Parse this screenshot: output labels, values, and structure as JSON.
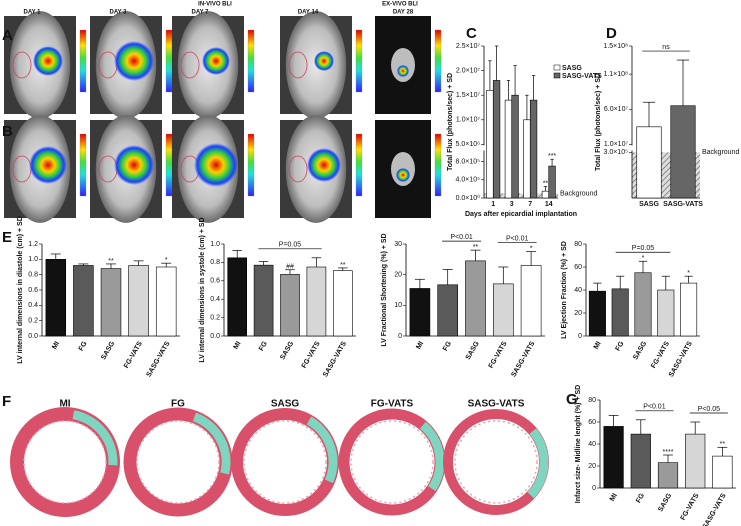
{
  "figure": {
    "panels": [
      "A",
      "B",
      "C",
      "D",
      "E",
      "F",
      "G"
    ],
    "in_vivo": "IN-VIVO BLI",
    "ex_vivo": "EX-VIVO BLI",
    "days": [
      "DAY 1",
      "DAY 3",
      "DAY 7",
      "DAY 14",
      "DAY 28"
    ],
    "histology": [
      "MI",
      "FG",
      "SASG",
      "FG-VATS",
      "SASG-VATS"
    ]
  },
  "chart_data": [
    {
      "type": "bar",
      "ylabel": "Total Flux (photons/sec) + SD",
      "xlabel": "Days after epicardial implantation",
      "categories": [
        "1",
        "3",
        "7",
        "14"
      ],
      "series": [
        {
          "name": "SASG",
          "color": "#ffffff",
          "values": [
            16000000,
            14000000,
            10000000,
            150000
          ],
          "errors": [
            6000000,
            4000000,
            5000000,
            100000
          ],
          "marks": [
            null,
            null,
            null,
            "**"
          ]
        },
        {
          "name": "SASG-VATS",
          "color": "#666666",
          "values": [
            18000000,
            15000000,
            14000000,
            700000
          ],
          "errors": [
            7000000,
            6000000,
            5000000,
            150000
          ],
          "marks": [
            null,
            null,
            null,
            "***"
          ]
        }
      ],
      "ylim": [
        0,
        25000000
      ],
      "axis_break": [
        1000000,
        5000000
      ],
      "yticks": [
        {
          "value": 0,
          "label": "0.0×10⁰"
        },
        {
          "value": 400000,
          "label": "4.0×10⁵"
        },
        {
          "value": 800000,
          "label": "8.0×10⁵"
        },
        {
          "value": 5000000,
          "label": "5.0×10⁶"
        },
        {
          "value": 10000000,
          "label": "1.0×10⁷"
        },
        {
          "value": 15000000,
          "label": "1.5×10⁷"
        },
        {
          "value": 20000000,
          "label": "2.0×10⁷"
        },
        {
          "value": 25000000,
          "label": "2.5×10⁷"
        }
      ],
      "background": {
        "label": "Background",
        "value": 100000
      },
      "legend": "upper right"
    },
    {
      "type": "bar",
      "ylabel": "Total Flux (photons/sec) + SD",
      "categories": [
        "SASG",
        "SASG-VATS"
      ],
      "series": [
        {
          "colors": [
            "#ffffff",
            "#666666"
          ],
          "values": [
            35000000,
            65000000
          ],
          "errors": [
            35000000,
            65000000
          ]
        }
      ],
      "ylim": [
        0,
        150000000
      ],
      "axis_break": [
        300000,
        10000000
      ],
      "yticks": [
        {
          "value": 300000,
          "label": "3.0×10⁵"
        },
        {
          "value": 10000000,
          "label": "1.0×10⁷"
        },
        {
          "value": 60000000,
          "label": "6.0×10⁷"
        },
        {
          "value": 110000000,
          "label": "1.1×10⁸"
        },
        {
          "value": 150000000,
          "label": "1.5×10⁸"
        }
      ],
      "background": {
        "label": "Background",
        "value": 300000
      },
      "brackets": [
        {
          "label": "ns",
          "from": "SASG",
          "to": "SASG-VATS"
        }
      ]
    },
    {
      "type": "bar",
      "ylabel": "LV internal dimensions in diastole (cm) + SD",
      "categories": [
        "MI",
        "FG",
        "SASG",
        "FG-VATS",
        "SASG-VATS"
      ],
      "series": [
        {
          "colors": [
            "#111111",
            "#5a5a5a",
            "#9a9a9a",
            "#d6d6d6",
            "#ffffff"
          ],
          "values": [
            1.0,
            0.92,
            0.88,
            0.92,
            0.9
          ],
          "errors": [
            0.07,
            0.02,
            0.06,
            0.06,
            0.05
          ],
          "marks": [
            null,
            null,
            "**",
            null,
            "*"
          ]
        }
      ],
      "ylim": [
        0,
        1.2
      ],
      "yticks": [
        {
          "value": 0,
          "label": "0.0"
        },
        0.2,
        0.4,
        0.6,
        0.8,
        {
          "value": 1,
          "label": "1.0"
        },
        1.2
      ]
    },
    {
      "type": "bar",
      "ylabel": "LV internal dimensions in systole (cm) + SD",
      "categories": [
        "MI",
        "FG",
        "SASG",
        "FG-VATS",
        "SASG-VATS"
      ],
      "series": [
        {
          "colors": [
            "#111111",
            "#5a5a5a",
            "#9a9a9a",
            "#d6d6d6",
            "#ffffff"
          ],
          "values": [
            0.85,
            0.77,
            0.67,
            0.75,
            0.71
          ],
          "errors": [
            0.08,
            0.04,
            0.05,
            0.1,
            0.03
          ],
          "marks": [
            null,
            null,
            "##",
            null,
            "**"
          ]
        }
      ],
      "ylim": [
        0,
        1.0
      ],
      "yticks": [
        {
          "value": 0,
          "label": "0.0"
        },
        0.2,
        0.4,
        0.6,
        0.8,
        {
          "value": 1,
          "label": "1.0"
        }
      ],
      "brackets": [
        {
          "label": "P=0.05",
          "from": "FG",
          "to": "FG-VATS"
        }
      ]
    },
    {
      "type": "bar",
      "ylabel": "LV Fractional Shortening (%) + SD",
      "categories": [
        "MI",
        "FG",
        "SASG",
        "FG-VATS",
        "SASG-VATS"
      ],
      "series": [
        {
          "colors": [
            "#111111",
            "#5a5a5a",
            "#9a9a9a",
            "#d6d6d6",
            "#ffffff"
          ],
          "values": [
            15.5,
            16.7,
            24.5,
            17,
            23
          ],
          "errors": [
            3,
            5,
            3.5,
            5.5,
            4.5
          ],
          "marks": [
            null,
            null,
            "**",
            null,
            "*"
          ]
        }
      ],
      "ylim": [
        0,
        30
      ],
      "yticks": [
        0,
        10,
        20,
        30
      ],
      "brackets": [
        {
          "label": "P<0.01",
          "from": "FG",
          "to": "SASG"
        },
        {
          "label": "P<0.01",
          "from": "FG-VATS",
          "to": "SASG-VATS"
        }
      ]
    },
    {
      "type": "bar",
      "ylabel": "LV Ejection Fraction (%) + SD",
      "categories": [
        "MI",
        "FG",
        "SASG",
        "FG-VATS",
        "SASG-VATS"
      ],
      "series": [
        {
          "colors": [
            "#111111",
            "#5a5a5a",
            "#9a9a9a",
            "#d6d6d6",
            "#ffffff"
          ],
          "values": [
            39,
            41,
            55,
            40,
            46
          ],
          "errors": [
            7,
            11,
            10,
            12,
            6
          ],
          "marks": [
            null,
            null,
            "*",
            null,
            "*"
          ]
        }
      ],
      "ylim": [
        0,
        80
      ],
      "yticks": [
        0,
        20,
        40,
        60,
        80
      ],
      "brackets": [
        {
          "label": "P=0.05",
          "from": "FG",
          "to": "FG-VATS"
        }
      ]
    },
    {
      "type": "bar",
      "ylabel": "Infarct size- Midline lenght (%) + SD",
      "categories": [
        "MI",
        "FG",
        "SASG",
        "FG-VATS",
        "SASG-VATS"
      ],
      "series": [
        {
          "colors": [
            "#111111",
            "#5a5a5a",
            "#9a9a9a",
            "#d6d6d6",
            "#ffffff"
          ],
          "values": [
            56,
            49,
            23,
            49,
            29
          ],
          "errors": [
            10,
            13,
            7,
            11,
            8
          ],
          "marks": [
            null,
            null,
            "****",
            null,
            "**"
          ]
        }
      ],
      "ylim": [
        0,
        80
      ],
      "yticks": [
        0,
        20,
        40,
        60,
        80
      ],
      "brackets": [
        {
          "label": "P<0.01",
          "from": "FG",
          "to": "SASG"
        },
        {
          "label": "P<0.05",
          "from": "FG-VATS",
          "to": "SASG-VATS"
        }
      ]
    }
  ]
}
